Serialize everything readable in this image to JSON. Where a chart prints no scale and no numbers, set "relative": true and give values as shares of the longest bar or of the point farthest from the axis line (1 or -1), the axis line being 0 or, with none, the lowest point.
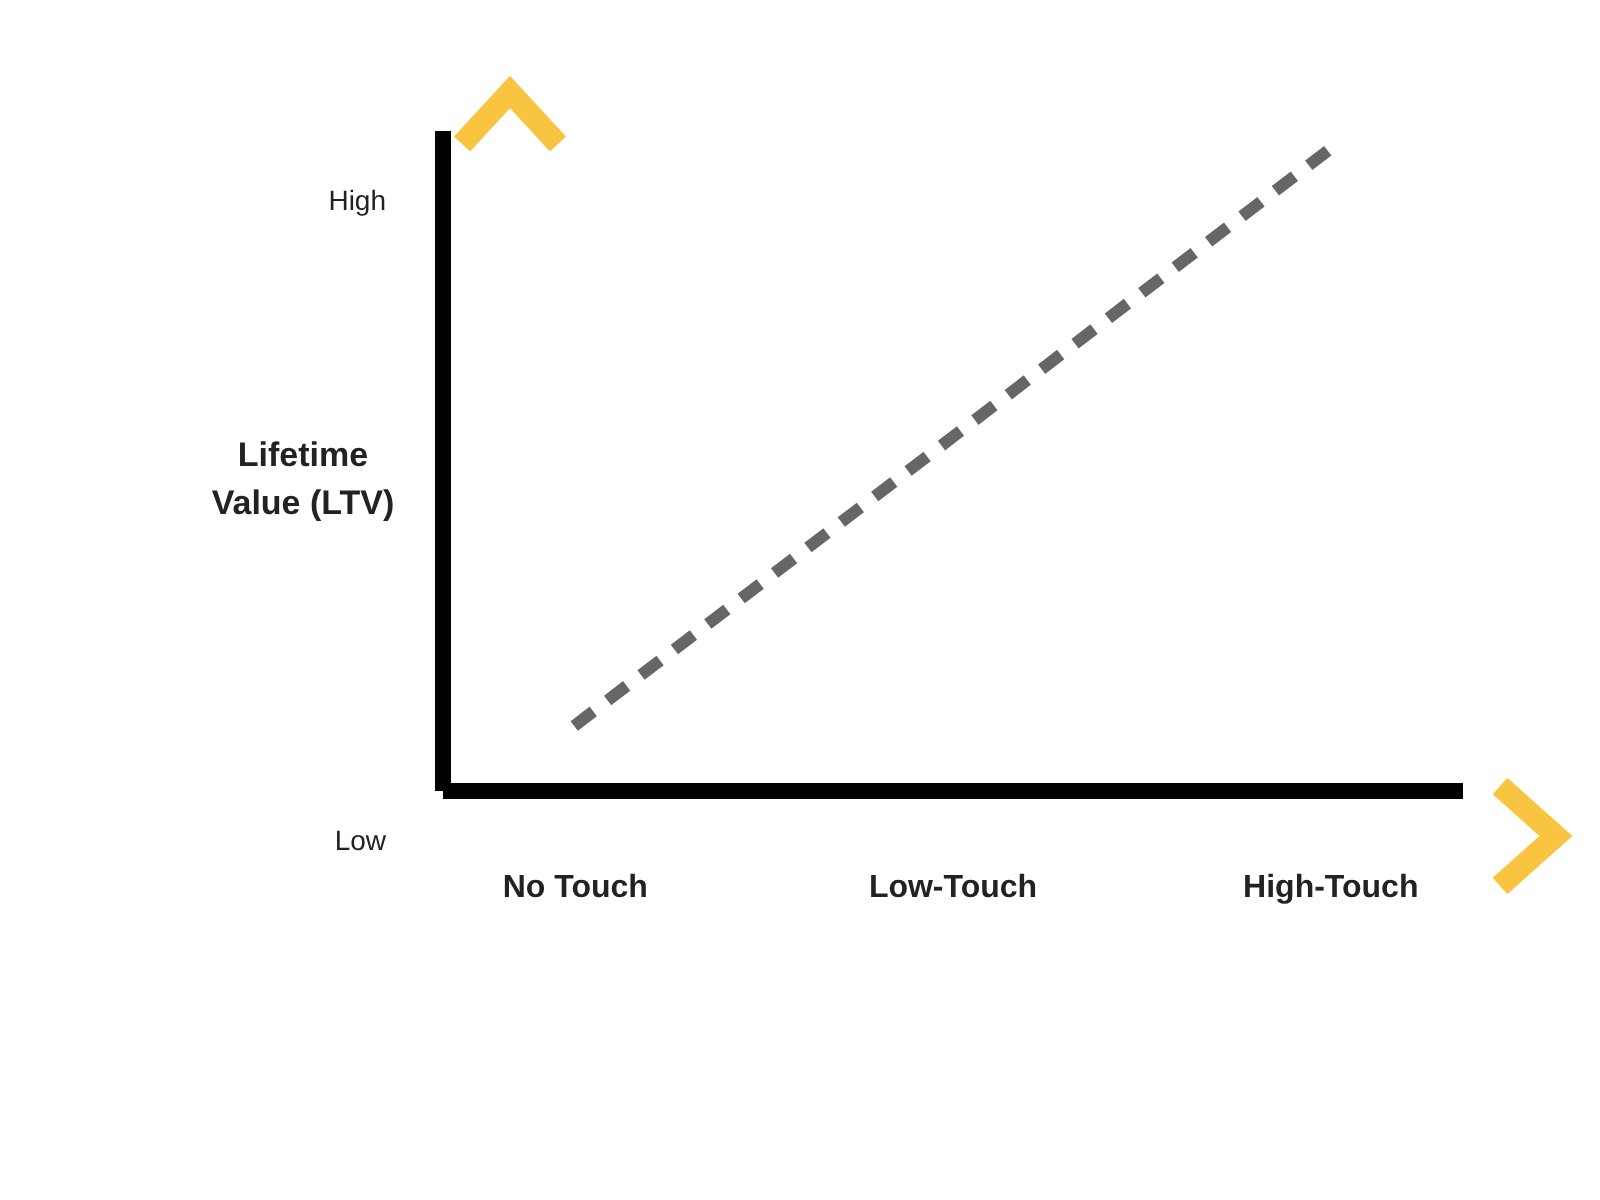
{
  "chart_data": {
    "type": "line",
    "ylabel": "Lifetime Value (LTV)",
    "categories": [
      "No Touch",
      "Low-Touch",
      "High-Touch"
    ],
    "relative": true,
    "line_style": "dashed",
    "series": [
      {
        "color": "#666666",
        "values": [
          0.1,
          0.55,
          1
        ]
      }
    ],
    "annotations": [
      "High",
      "Low"
    ]
  }
}
